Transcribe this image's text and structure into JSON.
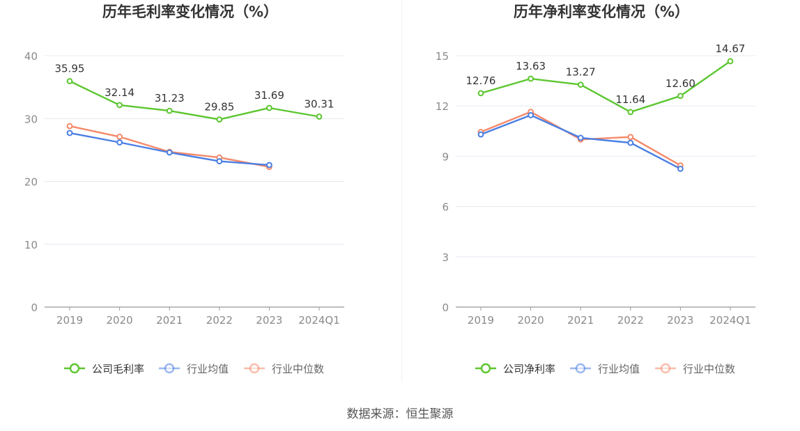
{
  "chart_data": [
    {
      "type": "line",
      "title": "历年毛利率变化情况（%）",
      "categories": [
        "2019",
        "2020",
        "2021",
        "2022",
        "2023",
        "2024Q1"
      ],
      "ylim": [
        0,
        40
      ],
      "yticks": [
        0,
        10,
        20,
        30,
        40
      ],
      "grid": true,
      "legend_position": "bottom",
      "series": [
        {
          "name": "公司毛利率",
          "color": "#5cc62f",
          "labels": true,
          "values": [
            35.95,
            32.14,
            31.23,
            29.85,
            31.69,
            30.31
          ]
        },
        {
          "name": "行业均值",
          "color": "#4a7fe3",
          "labels": false,
          "values": [
            27.7,
            26.2,
            24.6,
            23.2,
            22.6,
            null
          ]
        },
        {
          "name": "行业中位数",
          "color": "#f5896a",
          "labels": false,
          "values": [
            28.8,
            27.1,
            24.7,
            23.8,
            22.3,
            null
          ]
        }
      ]
    },
    {
      "type": "line",
      "title": "历年净利率变化情况（%）",
      "categories": [
        "2019",
        "2020",
        "2021",
        "2022",
        "2023",
        "2024Q1"
      ],
      "ylim": [
        0,
        15
      ],
      "yticks": [
        0,
        3,
        6,
        9,
        12,
        15
      ],
      "grid": true,
      "legend_position": "bottom",
      "series": [
        {
          "name": "公司净利率",
          "color": "#5cc62f",
          "labels": true,
          "values": [
            12.76,
            13.63,
            13.27,
            11.64,
            12.6,
            14.67
          ]
        },
        {
          "name": "行业均值",
          "color": "#4a7fe3",
          "labels": false,
          "values": [
            10.3,
            11.45,
            10.1,
            9.8,
            8.25,
            null
          ]
        },
        {
          "name": "行业中位数",
          "color": "#f5896a",
          "labels": false,
          "values": [
            10.45,
            11.65,
            10.0,
            10.15,
            8.45,
            null
          ]
        }
      ]
    }
  ],
  "footer": {
    "source": "数据来源：恒生聚源"
  }
}
